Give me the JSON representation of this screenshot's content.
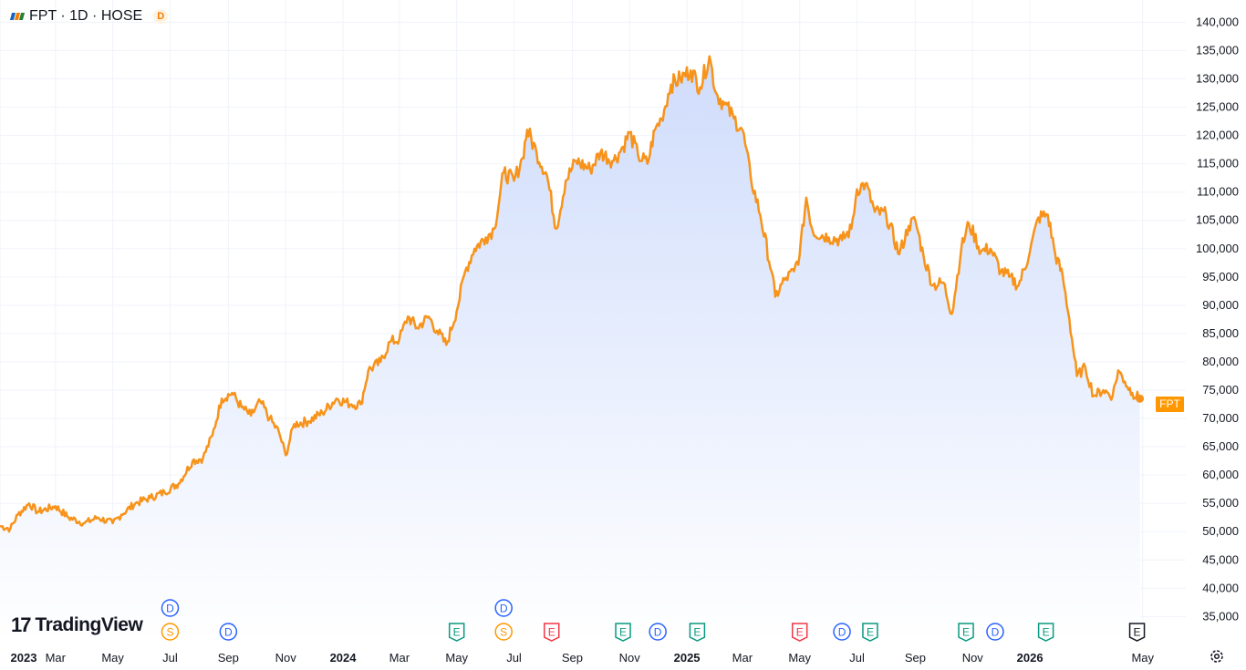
{
  "header": {
    "title": "FPT · 1D · HOSE",
    "badge": "D"
  },
  "brand": {
    "name": "TradingView"
  },
  "last_price_tag": "FPT",
  "colors": {
    "line": "#f7931a",
    "fill_top": "#cfdcfb",
    "fill_bottom": "#ffffff",
    "grid": "#f0f3fa",
    "dividend": "#2962ff",
    "split": "#ff9800",
    "earnings_good": "#089981",
    "earnings_bad": "#f23645"
  },
  "chart_data": {
    "type": "area",
    "symbol": "FPT",
    "xlim": [
      "2023-01-01",
      "2026-05-10"
    ],
    "ylim": [
      32000,
      142000
    ],
    "y_ticks": [
      35000,
      40000,
      45000,
      50000,
      55000,
      60000,
      65000,
      70000,
      75000,
      80000,
      85000,
      90000,
      95000,
      100000,
      105000,
      110000,
      115000,
      120000,
      125000,
      130000,
      135000,
      140000
    ],
    "y_tick_labels": [
      "35,000",
      "40,000",
      "45,000",
      "50,000",
      "55,000",
      "60,000",
      "65,000",
      "70,000",
      "75,000",
      "80,000",
      "85,000",
      "90,000",
      "95,000",
      "100,000",
      "105,000",
      "110,000",
      "115,000",
      "120,000",
      "125,000",
      "130,000",
      "135,000",
      "140,000"
    ],
    "x_ticks": [
      {
        "date": "2023-01-01",
        "label": "2023",
        "bold": true
      },
      {
        "date": "2023-03-01",
        "label": "Mar"
      },
      {
        "date": "2023-05-01",
        "label": "May"
      },
      {
        "date": "2023-07-01",
        "label": "Jul"
      },
      {
        "date": "2023-09-01",
        "label": "Sep"
      },
      {
        "date": "2023-11-01",
        "label": "Nov"
      },
      {
        "date": "2024-01-01",
        "label": "2024",
        "bold": true
      },
      {
        "date": "2024-03-01",
        "label": "Mar"
      },
      {
        "date": "2024-05-01",
        "label": "May"
      },
      {
        "date": "2024-07-01",
        "label": "Jul"
      },
      {
        "date": "2024-09-01",
        "label": "Sep"
      },
      {
        "date": "2024-11-01",
        "label": "Nov"
      },
      {
        "date": "2025-01-01",
        "label": "2025",
        "bold": true
      },
      {
        "date": "2025-03-01",
        "label": "Mar"
      },
      {
        "date": "2025-05-01",
        "label": "May"
      },
      {
        "date": "2025-07-01",
        "label": "Jul"
      },
      {
        "date": "2025-09-01",
        "label": "Sep"
      },
      {
        "date": "2025-11-01",
        "label": "Nov"
      },
      {
        "date": "2026-01-01",
        "label": "2026",
        "bold": true
      },
      {
        "date": "2026-05-01",
        "label": "May"
      }
    ],
    "series": [
      {
        "points": [
          [
            "2023-01-01",
            51000
          ],
          [
            "2023-01-12",
            50500
          ],
          [
            "2023-01-20",
            53000
          ],
          [
            "2023-02-01",
            55000
          ],
          [
            "2023-02-10",
            53500
          ],
          [
            "2023-03-01",
            54500
          ],
          [
            "2023-03-15",
            52500
          ],
          [
            "2023-04-01",
            51500
          ],
          [
            "2023-04-15",
            52500
          ],
          [
            "2023-05-01",
            51500
          ],
          [
            "2023-05-10",
            53000
          ],
          [
            "2023-05-25",
            55000
          ],
          [
            "2023-06-10",
            56000
          ],
          [
            "2023-06-25",
            57000
          ],
          [
            "2023-07-10",
            58500
          ],
          [
            "2023-07-25",
            62500
          ],
          [
            "2023-08-05",
            63000
          ],
          [
            "2023-08-15",
            67000
          ],
          [
            "2023-08-25",
            73500
          ],
          [
            "2023-09-05",
            74500
          ],
          [
            "2023-09-15",
            72000
          ],
          [
            "2023-09-25",
            70500
          ],
          [
            "2023-10-05",
            73000
          ],
          [
            "2023-10-15",
            70000
          ],
          [
            "2023-10-25",
            67500
          ],
          [
            "2023-11-01",
            63500
          ],
          [
            "2023-11-10",
            69000
          ],
          [
            "2023-11-25",
            69500
          ],
          [
            "2023-12-10",
            71000
          ],
          [
            "2023-12-25",
            73500
          ],
          [
            "2024-01-10",
            72500
          ],
          [
            "2024-01-20",
            72500
          ],
          [
            "2024-01-28",
            78500
          ],
          [
            "2024-02-10",
            80000
          ],
          [
            "2024-02-20",
            83500
          ],
          [
            "2024-03-01",
            84000
          ],
          [
            "2024-03-10",
            88000
          ],
          [
            "2024-03-20",
            86000
          ],
          [
            "2024-04-01",
            88000
          ],
          [
            "2024-04-10",
            85500
          ],
          [
            "2024-04-20",
            83000
          ],
          [
            "2024-05-01",
            89000
          ],
          [
            "2024-05-10",
            96000
          ],
          [
            "2024-05-20",
            100000
          ],
          [
            "2024-06-01",
            102000
          ],
          [
            "2024-06-10",
            103500
          ],
          [
            "2024-06-20",
            113500
          ],
          [
            "2024-07-01",
            112000
          ],
          [
            "2024-07-10",
            116000
          ],
          [
            "2024-07-15",
            121000
          ],
          [
            "2024-07-25",
            117000
          ],
          [
            "2024-08-05",
            113000
          ],
          [
            "2024-08-15",
            103500
          ],
          [
            "2024-08-25",
            112000
          ],
          [
            "2024-09-05",
            115500
          ],
          [
            "2024-09-20",
            114000
          ],
          [
            "2024-10-01",
            117000
          ],
          [
            "2024-10-15",
            115500
          ],
          [
            "2024-10-25",
            118000
          ],
          [
            "2024-11-01",
            120500
          ],
          [
            "2024-11-10",
            116500
          ],
          [
            "2024-11-20",
            115000
          ],
          [
            "2024-11-28",
            121000
          ],
          [
            "2024-12-05",
            123000
          ],
          [
            "2024-12-15",
            129000
          ],
          [
            "2024-12-25",
            130000
          ],
          [
            "2025-01-05",
            131500
          ],
          [
            "2025-01-15",
            128500
          ],
          [
            "2025-01-25",
            134000
          ],
          [
            "2025-02-01",
            127500
          ],
          [
            "2025-02-10",
            125500
          ],
          [
            "2025-02-20",
            123000
          ],
          [
            "2025-03-01",
            121000
          ],
          [
            "2025-03-10",
            112500
          ],
          [
            "2025-03-20",
            106000
          ],
          [
            "2025-04-01",
            96000
          ],
          [
            "2025-04-05",
            91500
          ],
          [
            "2025-04-15",
            94500
          ],
          [
            "2025-04-25",
            96000
          ],
          [
            "2025-05-01",
            99000
          ],
          [
            "2025-05-08",
            109000
          ],
          [
            "2025-05-15",
            103000
          ],
          [
            "2025-06-01",
            102000
          ],
          [
            "2025-06-15",
            101500
          ],
          [
            "2025-06-25",
            103500
          ],
          [
            "2025-07-01",
            110500
          ],
          [
            "2025-07-10",
            111500
          ],
          [
            "2025-07-20",
            106500
          ],
          [
            "2025-08-01",
            106000
          ],
          [
            "2025-08-15",
            99000
          ],
          [
            "2025-08-25",
            104000
          ],
          [
            "2025-09-01",
            105000
          ],
          [
            "2025-09-10",
            98500
          ],
          [
            "2025-09-20",
            93500
          ],
          [
            "2025-10-01",
            94000
          ],
          [
            "2025-10-10",
            88500
          ],
          [
            "2025-10-20",
            100000
          ],
          [
            "2025-10-28",
            104500
          ],
          [
            "2025-11-10",
            99500
          ],
          [
            "2025-11-20",
            100000
          ],
          [
            "2025-12-01",
            96000
          ],
          [
            "2025-12-10",
            95000
          ],
          [
            "2025-12-20",
            93500
          ],
          [
            "2026-01-01",
            99500
          ],
          [
            "2026-01-10",
            105500
          ],
          [
            "2026-01-20",
            106000
          ],
          [
            "2026-01-28",
            99000
          ],
          [
            "2026-02-05",
            95000
          ],
          [
            "2026-02-12",
            87500
          ],
          [
            "2026-02-20",
            77500
          ],
          [
            "2026-03-01",
            79000
          ],
          [
            "2026-03-10",
            74000
          ],
          [
            "2026-03-20",
            75000
          ],
          [
            "2026-03-30",
            74000
          ],
          [
            "2026-04-05",
            78500
          ],
          [
            "2026-04-12",
            76500
          ],
          [
            "2026-04-20",
            74500
          ],
          [
            "2026-04-28",
            73500
          ]
        ]
      }
    ],
    "events": [
      {
        "date": "2023-07-01",
        "type": "D",
        "row": 2
      },
      {
        "date": "2023-07-01",
        "type": "S",
        "row": 1
      },
      {
        "date": "2023-09-01",
        "type": "D",
        "row": 1
      },
      {
        "date": "2024-05-01",
        "type": "E",
        "row": 1,
        "tone": "good"
      },
      {
        "date": "2024-06-20",
        "type": "D",
        "row": 2
      },
      {
        "date": "2024-06-20",
        "type": "S",
        "row": 1
      },
      {
        "date": "2024-08-10",
        "type": "E",
        "row": 1,
        "tone": "bad"
      },
      {
        "date": "2024-10-25",
        "type": "E",
        "row": 1,
        "tone": "good"
      },
      {
        "date": "2024-12-01",
        "type": "D",
        "row": 1
      },
      {
        "date": "2025-01-12",
        "type": "E",
        "row": 1,
        "tone": "good"
      },
      {
        "date": "2025-05-01",
        "type": "E",
        "row": 1,
        "tone": "bad"
      },
      {
        "date": "2025-06-15",
        "type": "D",
        "row": 1
      },
      {
        "date": "2025-07-15",
        "type": "E",
        "row": 1,
        "tone": "good"
      },
      {
        "date": "2025-10-25",
        "type": "E",
        "row": 1,
        "tone": "good"
      },
      {
        "date": "2025-11-25",
        "type": "D",
        "row": 1
      },
      {
        "date": "2026-01-18",
        "type": "E",
        "row": 1,
        "tone": "good"
      },
      {
        "date": "2026-04-25",
        "type": "E",
        "row": 1,
        "tone": "neutral"
      }
    ]
  }
}
